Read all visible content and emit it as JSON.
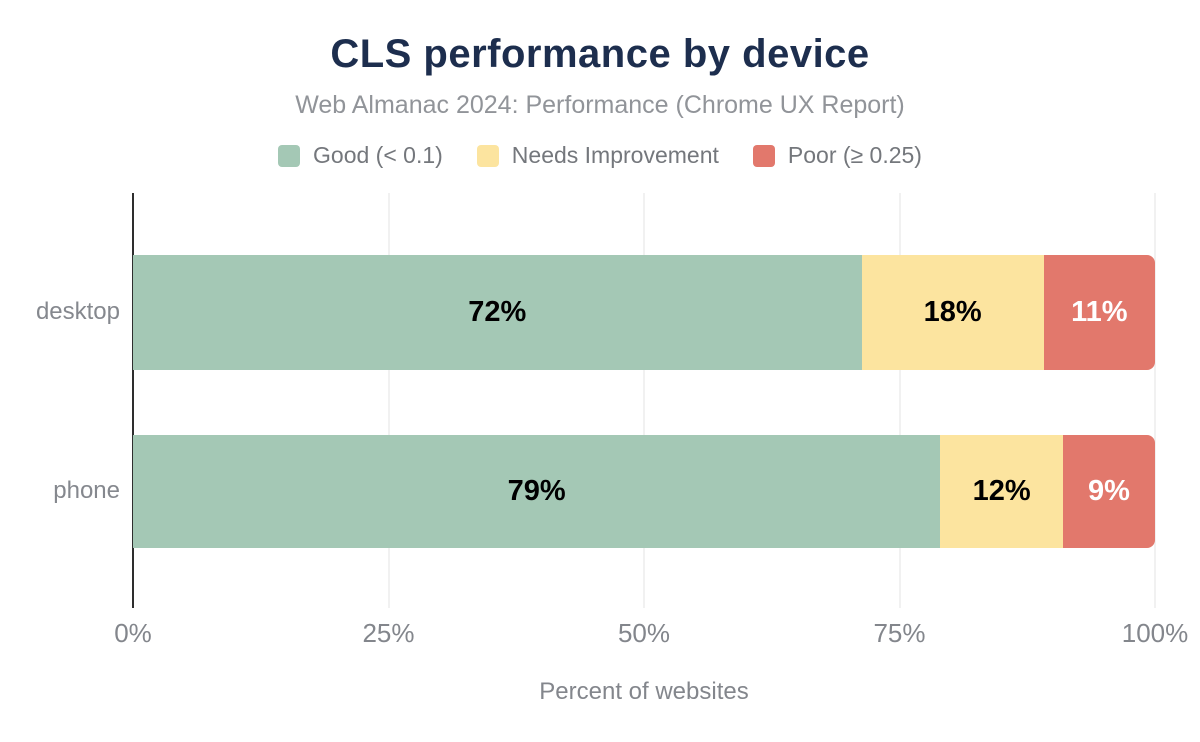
{
  "title": "CLS performance by device",
  "subtitle": "Web Almanac 2024: Performance (Chrome UX Report)",
  "legend": {
    "items": [
      {
        "label": "Good (< 0.1)",
        "color": "#a4c8b5"
      },
      {
        "label": "Needs Improvement",
        "color": "#fce49f"
      },
      {
        "label": "Poor (≥ 0.25)",
        "color": "#e2786c"
      }
    ]
  },
  "chart_data": {
    "type": "bar",
    "orientation": "horizontal",
    "stacked": true,
    "title": "CLS performance by device",
    "subtitle": "Web Almanac 2024: Performance (Chrome UX Report)",
    "xlabel": "Percent of websites",
    "ylabel": "",
    "xlim": [
      0,
      100
    ],
    "x_ticks": [
      0,
      25,
      50,
      75,
      100
    ],
    "x_tick_labels": [
      "0%",
      "25%",
      "50%",
      "75%",
      "100%"
    ],
    "grid": true,
    "legend_position": "top",
    "categories": [
      "desktop",
      "phone"
    ],
    "series": [
      {
        "name": "Good (< 0.1)",
        "slug": "good",
        "color": "#a4c8b5",
        "label_color": "#000000",
        "values": [
          72,
          79
        ]
      },
      {
        "name": "Needs Improvement",
        "slug": "needs-improvement",
        "color": "#fce49f",
        "label_color": "#000000",
        "values": [
          18,
          12
        ]
      },
      {
        "name": "Poor (≥ 0.25)",
        "slug": "poor",
        "color": "#e2786c",
        "label_color": "#ffffff",
        "values": [
          11,
          9
        ]
      }
    ],
    "data_labels": [
      [
        "72%",
        "18%",
        "11%"
      ],
      [
        "79%",
        "12%",
        "9%"
      ]
    ]
  },
  "colors": {
    "title": "#1d2e4e",
    "subtitle": "#919499",
    "axis_text": "#83868c",
    "axis_line": "#2e2e2e",
    "gridline": "#f1f1f1",
    "background": "#ffffff"
  }
}
